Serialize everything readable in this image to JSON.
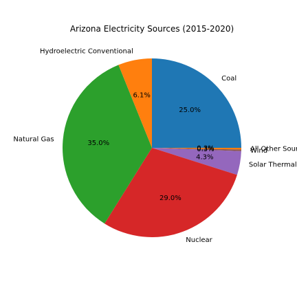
{
  "chart_data": {
    "type": "pie",
    "title": "Arizona Electricity Sources (2015-2020)",
    "slices": [
      {
        "label": "Coal",
        "value": 25.0,
        "pct_label": "25.0%",
        "color": "#1f77b4"
      },
      {
        "label": "All Other Sources",
        "value": 0.3,
        "pct_label": "0.3%",
        "color": "#ff7f0e"
      },
      {
        "label": "Wind",
        "value": 0.3,
        "pct_label": "0.3%",
        "color": "#8c564b"
      },
      {
        "label": "Solar Thermal",
        "value": 4.3,
        "pct_label": "4.3%",
        "color": "#9467bd"
      },
      {
        "label": "Nuclear",
        "value": 29.0,
        "pct_label": "29.0%",
        "color": "#d62728"
      },
      {
        "label": "Natural Gas",
        "value": 35.0,
        "pct_label": "35.0%",
        "color": "#2ca02c"
      },
      {
        "label": "Hydroelectric Conventional",
        "value": 6.1,
        "pct_label": "6.1%",
        "color": "#ff7f0e"
      }
    ],
    "start_angle_deg": 90,
    "direction": "clockwise"
  }
}
